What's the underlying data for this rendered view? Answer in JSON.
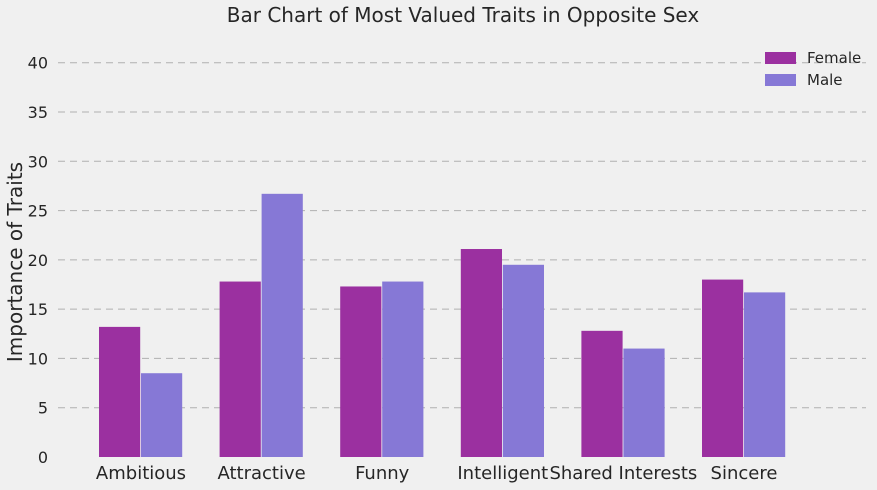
{
  "chart_data": {
    "type": "bar",
    "title": "Bar Chart of Most Valued Traits in Opposite Sex",
    "xlabel": "",
    "ylabel": "Importance of Traits",
    "categories": [
      "Ambitious",
      "Attractive",
      "Funny",
      "Intelligent",
      "Shared Interests",
      "Sincere"
    ],
    "series": [
      {
        "name": "Female",
        "values": [
          13.2,
          17.8,
          17.3,
          21.1,
          12.8,
          18.0
        ],
        "color": "#9b30a0"
      },
      {
        "name": "Male",
        "values": [
          8.5,
          26.7,
          17.8,
          19.5,
          11.0,
          16.7
        ],
        "color": "#8678d6"
      }
    ],
    "ylim": [
      0,
      42
    ],
    "yticks": [
      0,
      5,
      10,
      15,
      20,
      25,
      30,
      35,
      40
    ],
    "grid": true,
    "legend_position": "top-right"
  }
}
